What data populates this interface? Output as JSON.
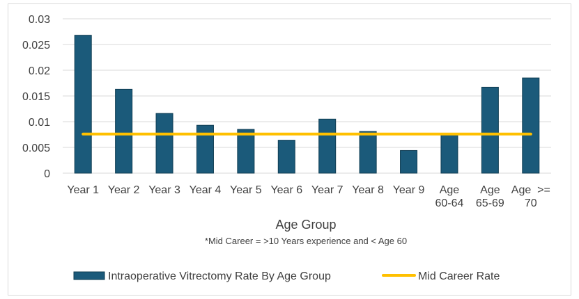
{
  "chart_data": {
    "type": "bar",
    "title": "",
    "xlabel": "Age Group",
    "footnote": "*Mid Career = >10 Years experience and < Age 60",
    "ylabel": "",
    "ylim": [
      0,
      0.03
    ],
    "yticks": [
      "0",
      "0.005",
      "0.01",
      "0.015",
      "0.02",
      "0.025",
      "0.03"
    ],
    "grid": true,
    "legend_position": "bottom",
    "categories": [
      [
        "Year 1"
      ],
      [
        "Year 2"
      ],
      [
        "Year 3"
      ],
      [
        "Year 4"
      ],
      [
        "Year 5"
      ],
      [
        "Year 6"
      ],
      [
        "Year 7"
      ],
      [
        "Year 8"
      ],
      [
        "Year 9"
      ],
      [
        "Age",
        "60-64"
      ],
      [
        "Age",
        "65-69"
      ],
      [
        "Age  >=",
        "70"
      ]
    ],
    "series": [
      {
        "name": "Intraoperative Vitrectomy Rate By Age Group",
        "type": "bar",
        "color": "#1b5a7a",
        "values": [
          0.0268,
          0.0163,
          0.0116,
          0.0093,
          0.0085,
          0.0064,
          0.0105,
          0.0081,
          0.0044,
          0.0075,
          0.0167,
          0.0185
        ]
      },
      {
        "name": "Mid Career Rate",
        "type": "line",
        "color": "#ffc000",
        "values": [
          0.0076,
          0.0076,
          0.0076,
          0.0076,
          0.0076,
          0.0076,
          0.0076,
          0.0076,
          0.0076,
          0.0076,
          0.0076,
          0.0076
        ]
      }
    ]
  }
}
